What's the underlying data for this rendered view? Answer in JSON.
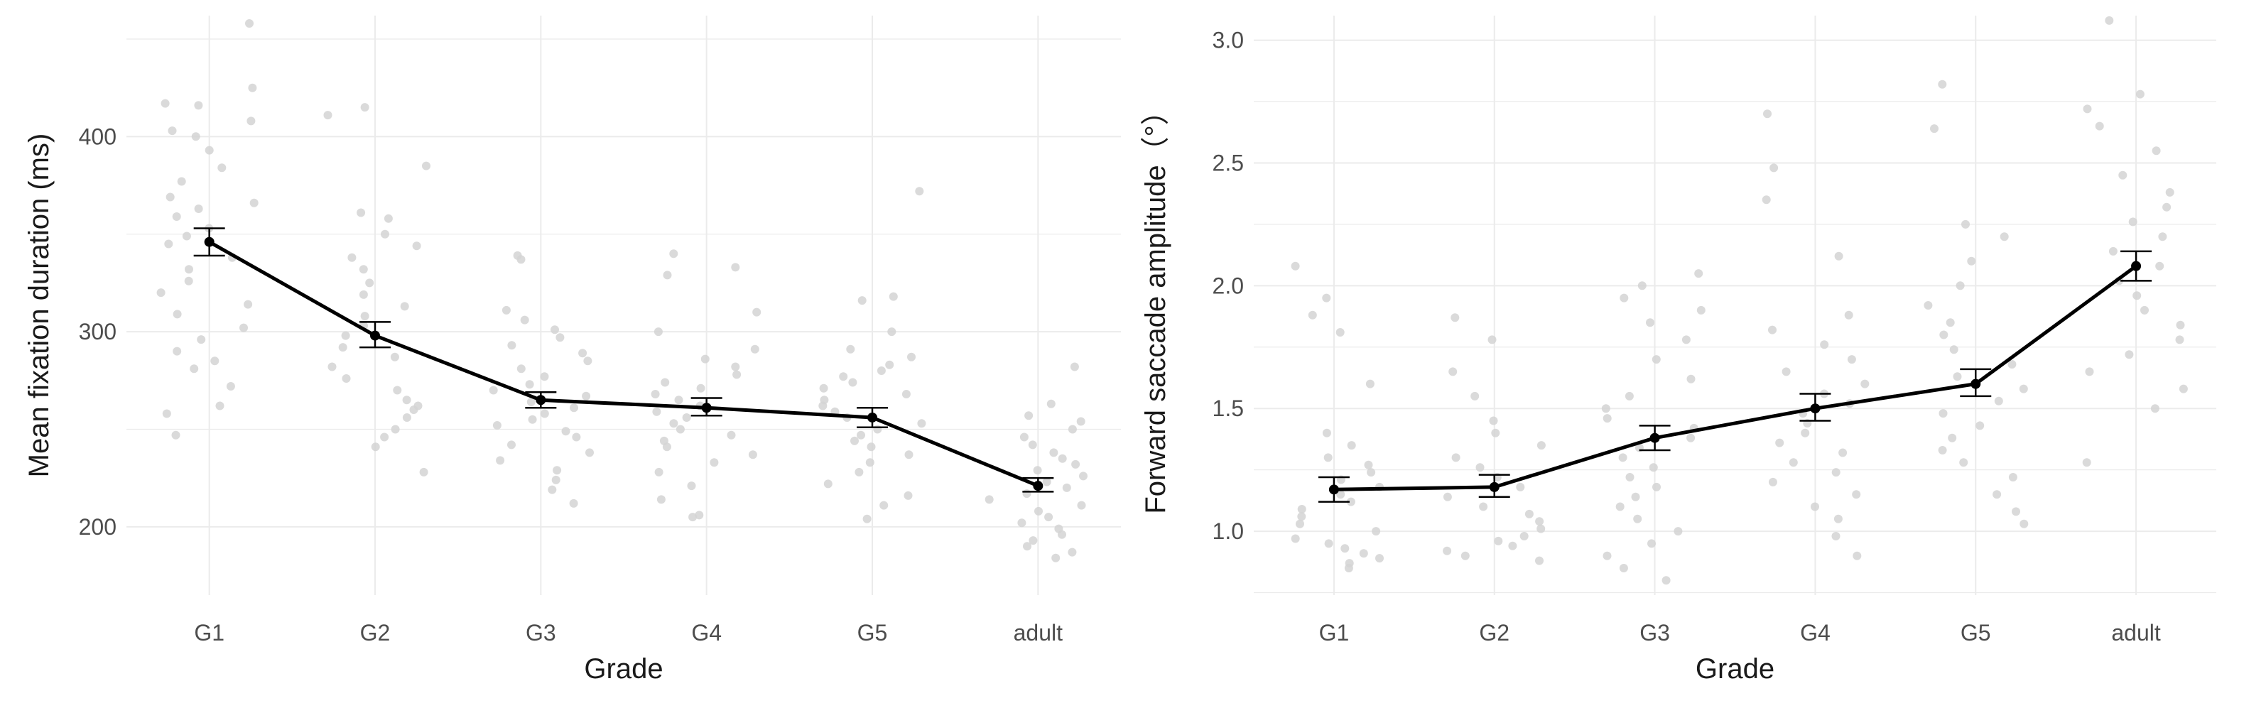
{
  "chart_data": [
    {
      "type": "line",
      "title": "",
      "xlabel": "Grade",
      "ylabel": "Mean fixation duration (ms)",
      "categories": [
        "G1",
        "G2",
        "G3",
        "G4",
        "G5",
        "adult"
      ],
      "ylim": [
        165,
        462
      ],
      "yticks": [
        200,
        300,
        400
      ],
      "ytick_labels": [
        "200",
        "300",
        "400"
      ],
      "grid": true,
      "colors": {
        "line": "#000000",
        "points": "#d3d3d3",
        "grid": "#ebebeb"
      },
      "series": [
        {
          "name": "mean",
          "values": [
            346,
            298,
            265,
            261,
            256,
            221
          ],
          "error_lower": [
            339,
            292,
            261,
            257,
            251,
            218
          ],
          "error_upper": [
            353,
            305,
            269,
            266,
            261,
            225
          ]
        }
      ],
      "jitter_points": [
        [
          458,
          425,
          417,
          416,
          408,
          403,
          400,
          393,
          384,
          377,
          369,
          366,
          363,
          359,
          353,
          349,
          345,
          338,
          332,
          326,
          320,
          314,
          309,
          302,
          296,
          290,
          285,
          281,
          272,
          262,
          258,
          247
        ],
        [
          415,
          411,
          385,
          361,
          358,
          350,
          344,
          338,
          332,
          325,
          319,
          313,
          308,
          303,
          298,
          292,
          287,
          282,
          276,
          270,
          265,
          262,
          260,
          256,
          250,
          246,
          241,
          228
        ],
        [
          339,
          337,
          311,
          306,
          301,
          297,
          293,
          289,
          285,
          281,
          277,
          273,
          270,
          267,
          264,
          261,
          258,
          255,
          252,
          249,
          246,
          242,
          238,
          234,
          229,
          224,
          219,
          212
        ],
        [
          340,
          333,
          329,
          310,
          300,
          291,
          286,
          282,
          278,
          274,
          271,
          268,
          265,
          262,
          259,
          256,
          253,
          250,
          247,
          244,
          241,
          237,
          233,
          228,
          221,
          214,
          206,
          205
        ],
        [
          372,
          318,
          316,
          300,
          291,
          287,
          283,
          280,
          277,
          274,
          271,
          268,
          265,
          262,
          259,
          256,
          253,
          250,
          247,
          244,
          241,
          237,
          233,
          228,
          222,
          216,
          211,
          204
        ],
        [
          282,
          263,
          257,
          254,
          250,
          246,
          242,
          238,
          235,
          232,
          229,
          226,
          223,
          220,
          217,
          214,
          211,
          208,
          205,
          202,
          199,
          196,
          193,
          190,
          187,
          184
        ]
      ]
    },
    {
      "type": "line",
      "title": "",
      "xlabel": "Grade",
      "ylabel": "Forward saccade amplitude（°）",
      "categories": [
        "G1",
        "G2",
        "G3",
        "G4",
        "G5",
        "adult"
      ],
      "ylim": [
        0.74,
        3.1
      ],
      "yticks": [
        1.0,
        1.5,
        2.0,
        2.5,
        3.0
      ],
      "ytick_labels": [
        "1.0",
        "1.5",
        "2.0",
        "2.5",
        "3.0"
      ],
      "grid": true,
      "colors": {
        "line": "#000000",
        "points": "#d3d3d3",
        "grid": "#ebebeb"
      },
      "series": [
        {
          "name": "mean",
          "values": [
            1.17,
            1.18,
            1.38,
            1.5,
            1.6,
            2.08
          ],
          "error_lower": [
            1.12,
            1.14,
            1.33,
            1.45,
            1.55,
            2.02
          ],
          "error_upper": [
            1.22,
            1.23,
            1.43,
            1.56,
            1.66,
            2.14
          ]
        }
      ],
      "jitter_points": [
        [
          2.08,
          1.95,
          1.88,
          1.81,
          1.6,
          1.4,
          1.35,
          1.3,
          1.27,
          1.24,
          1.21,
          1.18,
          1.15,
          1.12,
          1.09,
          1.06,
          1.03,
          1.0,
          0.97,
          0.95,
          0.93,
          0.91,
          0.89,
          0.87,
          0.85
        ],
        [
          1.87,
          1.78,
          1.65,
          1.55,
          1.45,
          1.4,
          1.35,
          1.3,
          1.26,
          1.22,
          1.18,
          1.14,
          1.1,
          1.07,
          1.04,
          1.01,
          0.98,
          0.96,
          0.94,
          0.92,
          0.9,
          0.88
        ],
        [
          2.05,
          2.0,
          1.95,
          1.9,
          1.85,
          1.78,
          1.7,
          1.62,
          1.55,
          1.5,
          1.46,
          1.42,
          1.38,
          1.34,
          1.3,
          1.26,
          1.22,
          1.18,
          1.14,
          1.1,
          1.05,
          1.0,
          0.95,
          0.9,
          0.85,
          0.8
        ],
        [
          2.7,
          2.48,
          2.35,
          2.12,
          1.88,
          1.82,
          1.76,
          1.7,
          1.65,
          1.6,
          1.56,
          1.52,
          1.48,
          1.44,
          1.4,
          1.36,
          1.32,
          1.28,
          1.24,
          1.2,
          1.15,
          1.1,
          1.05,
          0.98,
          0.9
        ],
        [
          2.82,
          2.64,
          2.25,
          2.2,
          2.1,
          2.0,
          1.92,
          1.85,
          1.8,
          1.74,
          1.68,
          1.63,
          1.58,
          1.53,
          1.48,
          1.43,
          1.38,
          1.33,
          1.28,
          1.22,
          1.15,
          1.08,
          1.03
        ],
        [
          3.08,
          2.78,
          2.72,
          2.65,
          2.55,
          2.45,
          2.38,
          2.32,
          2.26,
          2.2,
          2.14,
          2.08,
          2.02,
          1.96,
          1.9,
          1.84,
          1.78,
          1.72,
          1.65,
          1.58,
          1.5,
          1.28
        ]
      ]
    }
  ]
}
